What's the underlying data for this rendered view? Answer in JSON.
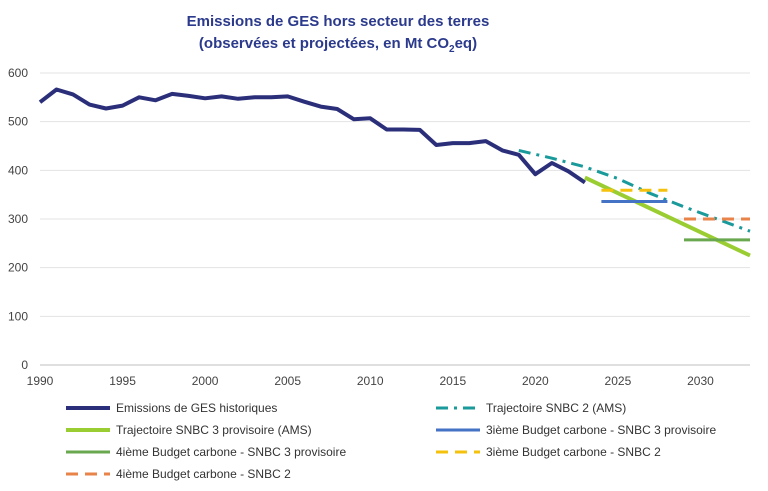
{
  "chart_data": {
    "type": "line",
    "title_line1": "Emissions de GES hors secteur des terres",
    "title_line2_main": "(observées et projectées, en Mt CO",
    "title_line2_sub": "2",
    "title_line2_end": "eq)",
    "xlabel": "",
    "ylabel": "",
    "xlim": [
      1990,
      2033
    ],
    "ylim": [
      0,
      600
    ],
    "x_ticks": [
      1990,
      1995,
      2000,
      2005,
      2010,
      2015,
      2020,
      2025,
      2030
    ],
    "y_ticks": [
      0,
      100,
      200,
      300,
      400,
      500,
      600
    ],
    "grid": true,
    "legend_position": "bottom",
    "series": [
      {
        "name": "Emissions de GES historiques",
        "color": "#2b2f7a",
        "style": "solid",
        "x": [
          1990,
          1991,
          1992,
          1993,
          1994,
          1995,
          1996,
          1997,
          1998,
          1999,
          2000,
          2001,
          2002,
          2003,
          2004,
          2005,
          2006,
          2007,
          2008,
          2009,
          2010,
          2011,
          2012,
          2013,
          2014,
          2015,
          2016,
          2017,
          2018,
          2019,
          2020,
          2021,
          2022,
          2023
        ],
        "y": [
          540,
          566,
          556,
          535,
          527,
          533,
          550,
          544,
          557,
          553,
          548,
          552,
          547,
          550,
          550,
          552,
          541,
          531,
          526,
          505,
          507,
          484,
          484,
          483,
          452,
          456,
          456,
          460,
          441,
          432,
          392,
          415,
          398,
          375
        ]
      },
      {
        "name": "Trajectoire SNBC 2 (AMS)",
        "color": "#1a9a9a",
        "style": "dashdot",
        "x": [
          2019,
          2021,
          2023,
          2025,
          2027,
          2029,
          2031,
          2033
        ],
        "y": [
          441,
          425,
          407,
          383,
          352,
          325,
          300,
          275
        ]
      },
      {
        "name": "Trajectoire SNBC 3 provisoire (AMS)",
        "color": "#9acd32",
        "style": "solid",
        "x": [
          2023,
          2033
        ],
        "y": [
          385,
          225
        ]
      },
      {
        "name": "3ième Budget carbone - SNBC 3 provisoire",
        "color": "#4472c4",
        "style": "solid",
        "x": [
          2024,
          2028
        ],
        "y": [
          336,
          336
        ]
      },
      {
        "name": "4ième Budget carbone - SNBC 3 provisoire",
        "color": "#6aa84f",
        "style": "solid",
        "x": [
          2029,
          2033
        ],
        "y": [
          257,
          257
        ]
      },
      {
        "name": "3ième Budget carbone - SNBC 2",
        "color": "#f4c20d",
        "style": "dashed",
        "x": [
          2024,
          2028
        ],
        "y": [
          359,
          359
        ]
      },
      {
        "name": "4ième Budget carbone - SNBC 2",
        "color": "#e8834a",
        "style": "dashed",
        "x": [
          2029,
          2033
        ],
        "y": [
          300,
          300
        ]
      }
    ]
  }
}
